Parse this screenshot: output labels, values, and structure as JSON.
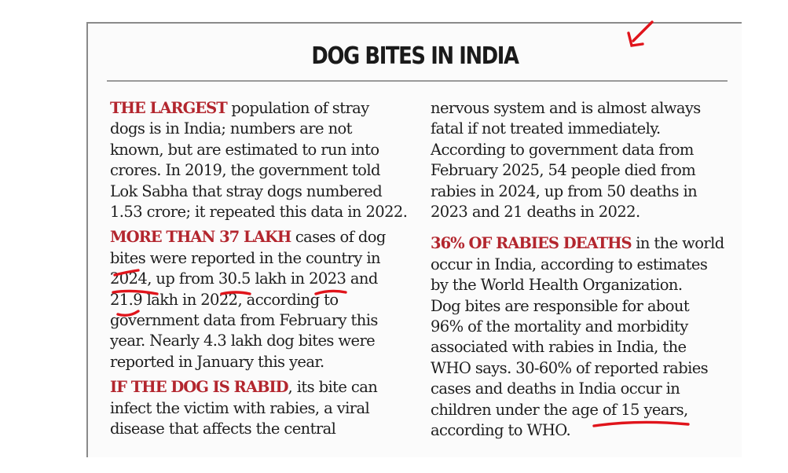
{
  "headline": "DOG BITES IN INDIA",
  "left_column": [
    {
      "lead": "THE LARGEST",
      "lines": [
        " population of stray",
        "dogs is in India; numbers are not",
        "known, but are estimated to run into",
        "crores. In 2019, the government told",
        "Lok Sabha that stray dogs numbered",
        "1.53 crore; it repeated this data in 2022."
      ]
    },
    {
      "lead": "MORE THAN 37 LAKH",
      "lines": [
        " cases of dog",
        "bites were reported in the country in",
        "2024, up from 30.5 lakh in 2023 and",
        "21.9 lakh in 2022, according to",
        "government data from February this",
        "year. Nearly 4.3 lakh dog bites were",
        "reported in January this year."
      ]
    },
    {
      "lead": "IF THE DOG IS RABID",
      "lines": [
        ", its bite can",
        "infect the victim with rabies, a viral",
        "disease that affects the central"
      ]
    }
  ],
  "right_column": [
    {
      "lead": "",
      "lines": [
        "nervous system and is almost always",
        "fatal if not treated immediately.",
        "According to government data from",
        "February 2025, 54 people died from",
        "rabies in 2024, up from 50 deaths in",
        "2023 and 21 deaths in 2022."
      ]
    },
    {
      "lead": "36% OF RABIES DEATHS",
      "lines": [
        " in the world",
        "occur in India, according to estimates",
        "by the World Health Organization.",
        "Dog bites are responsible for about",
        "96% of the mortality and morbidity",
        "associated with rabies in India, the",
        "WHO says. 30-60% of reported rabies",
        "cases and deaths in India occur in",
        "children under the age of 15 years,",
        "according to WHO."
      ]
    }
  ],
  "colors": {
    "lead_red": "#b3262e",
    "ink_red": "#e0141b",
    "text": "#1e1e1e"
  },
  "annotations": [
    "arrow-mark",
    "underline-2024",
    "underline-30.5",
    "underline-2023",
    "underline-21.9",
    "underline-15-years"
  ]
}
